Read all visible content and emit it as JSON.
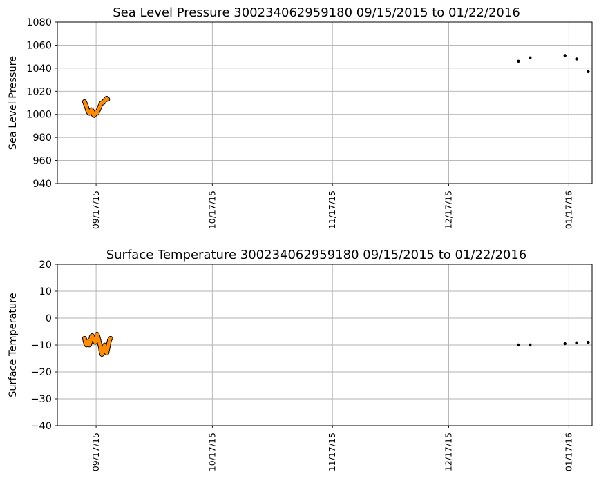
{
  "chart_data": [
    {
      "type": "scatter",
      "title": "Sea Level Pressure 300234062959180  09/15/2015 to 01/22/2016",
      "xlabel": "",
      "ylabel": "Sea Level Pressure",
      "xlim": [
        "2015-09-07",
        "2016-01-23"
      ],
      "ylim": [
        940,
        1080
      ],
      "yticks": [
        940,
        960,
        980,
        1000,
        1020,
        1040,
        1060,
        1080
      ],
      "xticks": [
        "2015-09-17",
        "2015-10-17",
        "2015-11-17",
        "2015-12-17",
        "2016-01-17"
      ],
      "xtick_labels": [
        "09/17/15",
        "10/17/15",
        "11/17/15",
        "12/17/15",
        "01/17/16"
      ],
      "grid": true,
      "colors": {
        "dense": "#ff8c00",
        "edge": "#000000",
        "sparse": "#000000"
      },
      "series": [
        {
          "style": "dense-orange",
          "points": [
            [
              "2015-09-14 00:00",
              1011
            ],
            [
              "2015-09-14 06:00",
              1009
            ],
            [
              "2015-09-14 12:00",
              1007
            ],
            [
              "2015-09-14 18:00",
              1004
            ],
            [
              "2015-09-15 00:00",
              1002
            ],
            [
              "2015-09-15 06:00",
              1001
            ],
            [
              "2015-09-15 12:00",
              1002
            ],
            [
              "2015-09-15 18:00",
              1004
            ],
            [
              "2015-09-16 00:00",
              1003
            ],
            [
              "2015-09-16 06:00",
              1000
            ],
            [
              "2015-09-16 12:00",
              999
            ],
            [
              "2015-09-16 18:00",
              1001
            ],
            [
              "2015-09-17 00:00",
              1002
            ],
            [
              "2015-09-17 06:00",
              1001
            ],
            [
              "2015-09-17 12:00",
              1003
            ],
            [
              "2015-09-17 18:00",
              1005
            ],
            [
              "2015-09-18 00:00",
              1007
            ],
            [
              "2015-09-18 06:00",
              1009
            ],
            [
              "2015-09-18 12:00",
              1010
            ],
            [
              "2015-09-18 18:00",
              1010
            ],
            [
              "2015-09-19 00:00",
              1011
            ],
            [
              "2015-09-19 06:00",
              1012
            ],
            [
              "2015-09-19 12:00",
              1013
            ],
            [
              "2015-09-19 18:00",
              1014
            ],
            [
              "2015-09-20 00:00",
              1013
            ]
          ]
        },
        {
          "style": "sparse-black",
          "points": [
            [
              "2016-01-04",
              1046
            ],
            [
              "2016-01-07",
              1049
            ],
            [
              "2016-01-16",
              1051
            ],
            [
              "2016-01-19",
              1048
            ],
            [
              "2016-01-22",
              1037
            ]
          ]
        }
      ]
    },
    {
      "type": "scatter",
      "title": "Surface Temperature 300234062959180  09/15/2015 to 01/22/2016",
      "xlabel": "",
      "ylabel": "Surface Temperature",
      "xlim": [
        "2015-09-07",
        "2016-01-23"
      ],
      "ylim": [
        -40,
        20
      ],
      "yticks": [
        -40,
        -30,
        -20,
        -10,
        0,
        10,
        20
      ],
      "xticks": [
        "2015-09-17",
        "2015-10-17",
        "2015-11-17",
        "2015-12-17",
        "2016-01-17"
      ],
      "xtick_labels": [
        "09/17/15",
        "10/17/15",
        "11/17/15",
        "12/17/15",
        "01/17/16"
      ],
      "grid": true,
      "colors": {
        "dense": "#ff8c00",
        "edge": "#000000",
        "sparse": "#000000"
      },
      "series": [
        {
          "style": "dense-orange",
          "points": [
            [
              "2015-09-14 00:00",
              -7.5
            ],
            [
              "2015-09-14 06:00",
              -9
            ],
            [
              "2015-09-14 12:00",
              -10
            ],
            [
              "2015-09-14 18:00",
              -9.5
            ],
            [
              "2015-09-15 00:00",
              -8.5
            ],
            [
              "2015-09-15 06:00",
              -10
            ],
            [
              "2015-09-15 12:00",
              -9
            ],
            [
              "2015-09-15 18:00",
              -7
            ],
            [
              "2015-09-16 00:00",
              -6.5
            ],
            [
              "2015-09-16 06:00",
              -8
            ],
            [
              "2015-09-16 12:00",
              -7.5
            ],
            [
              "2015-09-16 18:00",
              -9
            ],
            [
              "2015-09-17 00:00",
              -8
            ],
            [
              "2015-09-17 06:00",
              -6
            ],
            [
              "2015-09-17 12:00",
              -7
            ],
            [
              "2015-09-17 18:00",
              -8.5
            ],
            [
              "2015-09-18 00:00",
              -10
            ],
            [
              "2015-09-18 06:00",
              -12
            ],
            [
              "2015-09-18 12:00",
              -13.5
            ],
            [
              "2015-09-18 18:00",
              -12.5
            ],
            [
              "2015-09-19 00:00",
              -11
            ],
            [
              "2015-09-19 06:00",
              -10
            ],
            [
              "2015-09-19 12:00",
              -12.5
            ],
            [
              "2015-09-19 18:00",
              -13
            ],
            [
              "2015-09-20 00:00",
              -11.5
            ],
            [
              "2015-09-20 06:00",
              -9.5
            ],
            [
              "2015-09-20 12:00",
              -8
            ],
            [
              "2015-09-20 18:00",
              -7.5
            ]
          ]
        },
        {
          "style": "sparse-black",
          "points": [
            [
              "2016-01-04",
              -10
            ],
            [
              "2016-01-07",
              -10
            ],
            [
              "2016-01-16",
              -9.5
            ],
            [
              "2016-01-19",
              -9.2
            ],
            [
              "2016-01-22",
              -9
            ]
          ]
        }
      ]
    }
  ]
}
